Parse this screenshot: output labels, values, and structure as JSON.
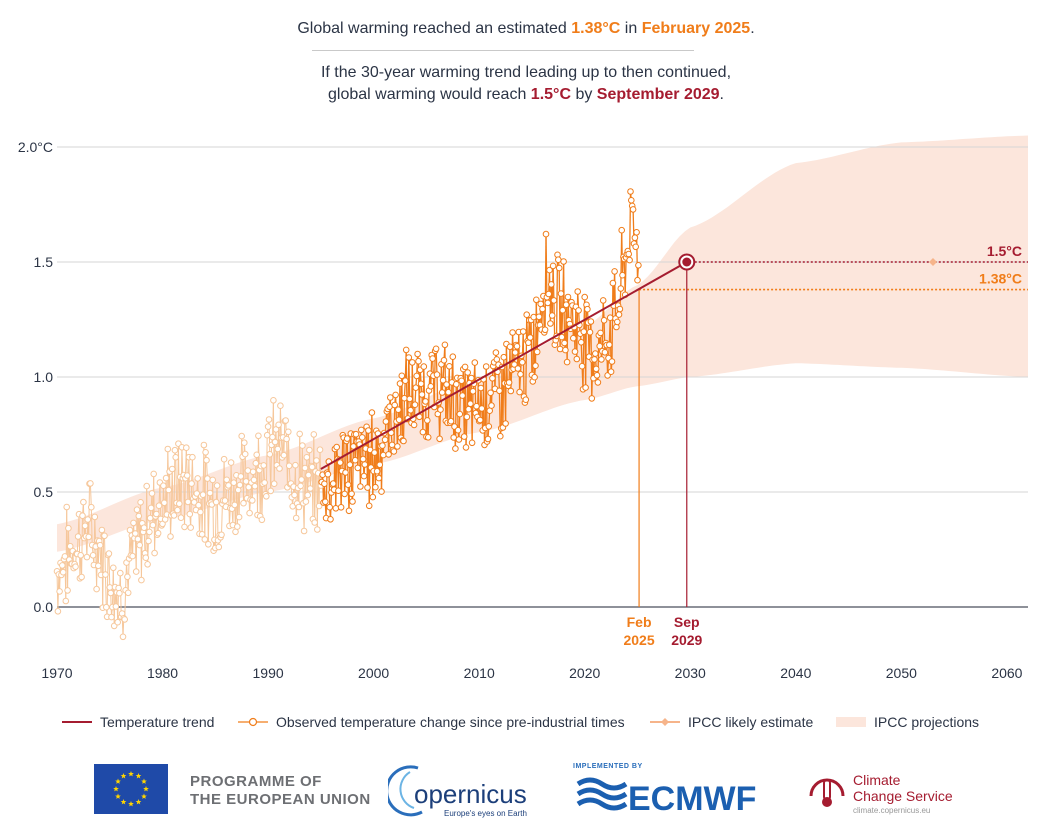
{
  "header": {
    "line1_prefix": "Global warming reached an estimated ",
    "line1_value": "1.38°C",
    "line1_mid": " in ",
    "line1_date": "February 2025",
    "line1_suffix": ".",
    "line2a": "If the 30-year warming trend leading up to then continued,",
    "line2b_prefix": "global warming would reach ",
    "line2b_value": "1.5°C",
    "line2b_mid": " by ",
    "line2b_date": "September 2029",
    "line2b_suffix": "."
  },
  "colors": {
    "observed_recent": "#f07d1a",
    "observed_old": "#f6c79b",
    "trend": "#a51c30",
    "ipcc_band": "#fce6dc",
    "grid": "#d6d6d6",
    "text": "#2b3445"
  },
  "chart_data": {
    "type": "line",
    "xlim": [
      1970,
      2062
    ],
    "ylim": [
      -0.25,
      2.05
    ],
    "x_ticks": [
      1970,
      1980,
      1990,
      2000,
      2010,
      2020,
      2030,
      2040,
      2050,
      2060
    ],
    "y_ticks": [
      {
        "value": 0.0,
        "label": "0.0"
      },
      {
        "value": 0.5,
        "label": "0.5"
      },
      {
        "value": 1.0,
        "label": "1.0"
      },
      {
        "value": 1.5,
        "label": "1.5"
      },
      {
        "value": 2.0,
        "label": "2.0°C"
      }
    ],
    "grid": true,
    "legend_position": "bottom",
    "trend": {
      "x": [
        1995.0,
        2029.67
      ],
      "y": [
        0.6,
        1.5
      ]
    },
    "observed_anchors": {
      "x": [
        1970,
        1973,
        1976,
        1979,
        1982,
        1985,
        1988,
        1991,
        1994,
        1997,
        2000,
        2003,
        2006,
        2009,
        2012,
        2015,
        2016.3,
        2017.5,
        2019,
        2021,
        2022.5,
        2023.5,
        2024.3,
        2025.15
      ],
      "y": [
        0.15,
        0.35,
        0.05,
        0.42,
        0.55,
        0.45,
        0.55,
        0.7,
        0.5,
        0.6,
        0.65,
        0.9,
        0.95,
        0.85,
        0.95,
        1.1,
        1.45,
        1.3,
        1.25,
        1.1,
        1.2,
        1.4,
        1.65,
        1.58
      ]
    },
    "ipcc_projection_band": {
      "x": [
        1970,
        1980,
        1990,
        2000,
        2010,
        2020,
        2025,
        2030,
        2040,
        2050,
        2062
      ],
      "lower": [
        0.24,
        0.38,
        0.5,
        0.62,
        0.76,
        0.9,
        0.96,
        1.0,
        1.06,
        1.04,
        1.0
      ],
      "upper": [
        0.36,
        0.52,
        0.66,
        0.82,
        1.0,
        1.22,
        1.4,
        1.65,
        1.93,
        2.02,
        2.05
      ]
    },
    "markers": {
      "current": {
        "x": 2025.15,
        "y": 1.38,
        "value_label": "1.38°C",
        "date_label_1": "Feb",
        "date_label_2": "2025"
      },
      "target": {
        "x": 2029.67,
        "y": 1.5,
        "value_label": "1.5°C",
        "date_label_1": "Sep",
        "date_label_2": "2029"
      },
      "ipcc_likely_estimate": {
        "x": 2053,
        "y": 1.5
      }
    },
    "legend": [
      {
        "key": "trend",
        "label": "Temperature trend"
      },
      {
        "key": "observed",
        "label": "Observed temperature change since pre-industrial times"
      },
      {
        "key": "ipcc_estimate",
        "label": "IPCC likely estimate"
      },
      {
        "key": "ipcc_band",
        "label": "IPCC projections"
      }
    ]
  },
  "footer": {
    "eu_line1": "PROGRAMME OF",
    "eu_line2": "THE EUROPEAN UNION",
    "copernicus_name": "opernicus",
    "copernicus_tagline": "Europe's eyes on Earth",
    "implemented_by": "IMPLEMENTED BY",
    "ecmwf_name": "ECMWF",
    "ccs_line1": "Climate",
    "ccs_line2": "Change Service",
    "ccs_url": "climate.copernicus.eu"
  }
}
